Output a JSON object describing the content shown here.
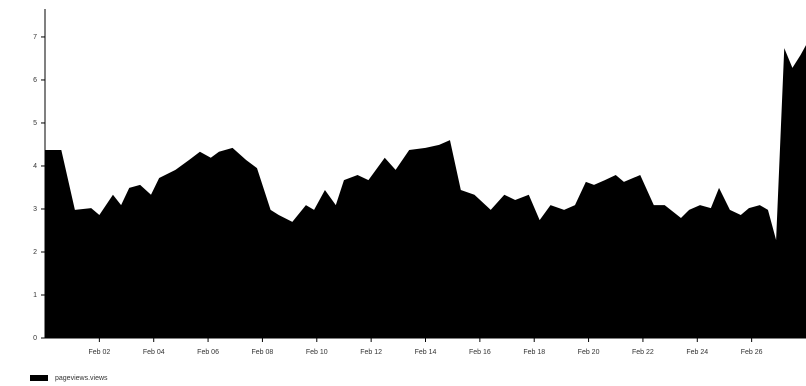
{
  "chart_data": {
    "type": "area",
    "x": [
      0,
      0.6,
      1.1,
      1.7,
      2.0,
      2.5,
      2.8,
      3.1,
      3.5,
      3.9,
      4.2,
      4.8,
      5.3,
      5.7,
      6.1,
      6.4,
      6.9,
      7.4,
      7.8,
      8.3,
      8.6,
      9.1,
      9.6,
      9.9,
      10.3,
      10.7,
      11.0,
      11.5,
      11.9,
      12.5,
      12.9,
      13.4,
      14.0,
      14.5,
      14.9,
      15.3,
      15.8,
      16.4,
      16.9,
      17.3,
      17.8,
      18.2,
      18.6,
      19.1,
      19.5,
      19.9,
      20.2,
      20.6,
      21.0,
      21.3,
      21.9,
      22.4,
      22.8,
      23.4,
      23.7,
      24.1,
      24.5,
      24.8,
      25.2,
      25.6,
      25.9,
      26.3,
      26.6,
      26.9,
      27.2,
      27.5,
      27.8,
      28
    ],
    "series": [
      {
        "name": "pageviews.views",
        "color": "#000000",
        "values": [
          4.37,
          4.37,
          2.98,
          3.02,
          2.86,
          3.33,
          3.09,
          3.49,
          3.56,
          3.33,
          3.72,
          3.91,
          4.14,
          4.33,
          4.19,
          4.33,
          4.42,
          4.14,
          3.95,
          2.98,
          2.86,
          2.7,
          3.09,
          2.98,
          3.44,
          3.09,
          3.67,
          3.79,
          3.67,
          4.19,
          3.91,
          4.37,
          4.42,
          4.49,
          4.6,
          3.44,
          3.33,
          2.98,
          3.33,
          3.21,
          3.33,
          2.74,
          3.09,
          2.98,
          3.09,
          3.63,
          3.56,
          3.67,
          3.79,
          3.63,
          3.79,
          3.09,
          3.09,
          2.79,
          2.98,
          3.09,
          3.02,
          3.49,
          2.98,
          2.86,
          3.02,
          3.09,
          2.98,
          2.28,
          6.74,
          6.28,
          6.58,
          6.81
        ]
      }
    ],
    "xlim": [
      0,
      28
    ],
    "xticks": [
      {
        "value": 2,
        "label": "Feb 02"
      },
      {
        "value": 4,
        "label": "Feb 04"
      },
      {
        "value": 6,
        "label": "Feb 06"
      },
      {
        "value": 8,
        "label": "Feb 08"
      },
      {
        "value": 10,
        "label": "Feb 10"
      },
      {
        "value": 12,
        "label": "Feb 12"
      },
      {
        "value": 14,
        "label": "Feb 14"
      },
      {
        "value": 16,
        "label": "Feb 16"
      },
      {
        "value": 18,
        "label": "Feb 18"
      },
      {
        "value": 20,
        "label": "Feb 20"
      },
      {
        "value": 22,
        "label": "Feb 22"
      },
      {
        "value": 24,
        "label": "Feb 24"
      },
      {
        "value": 26,
        "label": "Feb 26"
      }
    ],
    "ylim": [
      0,
      7.65
    ],
    "yticks": [
      0,
      1,
      2,
      3,
      4,
      5,
      6,
      7
    ],
    "legend": "bottom-left"
  }
}
